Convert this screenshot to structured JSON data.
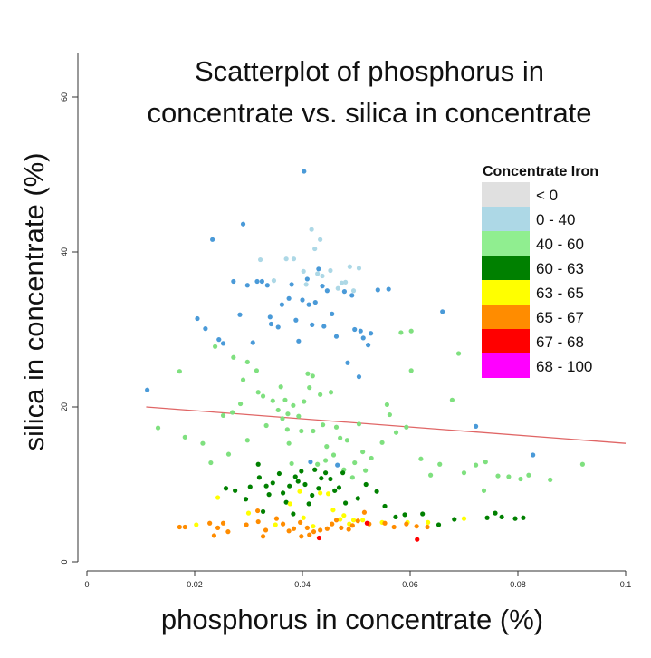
{
  "chart_data": {
    "type": "scatter",
    "title_lines": [
      "Scatterplot of phosphorus in",
      "concentrate vs. silica in concentrate"
    ],
    "xlabel": "phosphorus in concentrate (%)",
    "ylabel": "silica in concentrate (%)",
    "xlim": [
      0,
      0.1
    ],
    "ylim": [
      0,
      60
    ],
    "x_ticks": [
      "0",
      "0.02",
      "0.04",
      "0.06",
      "0.08",
      "0.1"
    ],
    "y_ticks": [
      "0",
      "20",
      "40",
      "60"
    ],
    "grid": false,
    "legend": {
      "title": "Concentrate Iron",
      "placement": "right",
      "items": [
        {
          "label": "< 0",
          "color": "#e0e0e0"
        },
        {
          "label": "0 - 40",
          "color": "#add8e6"
        },
        {
          "label": "40 - 60",
          "color": "#90ee90"
        },
        {
          "label": "60 - 63",
          "color": "#008000"
        },
        {
          "label": "63 - 65",
          "color": "#ffff00"
        },
        {
          "label": "65 - 67",
          "color": "#ff8c00"
        },
        {
          "label": "67 - 68",
          "color": "#ff0000"
        },
        {
          "label": "68 - 100",
          "color": "#ff00ff"
        }
      ]
    },
    "point_colors": {
      "blue": "#4a9ad8",
      "lightblue": "#add8e6",
      "lightgreen": "#7fe07f",
      "green": "#008000",
      "yellow": "#ffff00",
      "orange": "#ff8c00",
      "red": "#ff0000"
    },
    "trend_line": {
      "x": [
        0.011,
        0.1
      ],
      "y": [
        20.0,
        15.3
      ],
      "color": "#e06666"
    },
    "series": [
      {
        "name": "0 - 40",
        "color_key": "blue",
        "points": [
          [
            0.0112,
            22.2
          ],
          [
            0.0205,
            31.4
          ],
          [
            0.022,
            30.1
          ],
          [
            0.0233,
            41.6
          ],
          [
            0.0245,
            28.7
          ],
          [
            0.0253,
            28.2
          ],
          [
            0.0272,
            36.2
          ],
          [
            0.0284,
            31.9
          ],
          [
            0.029,
            43.6
          ],
          [
            0.0298,
            35.7
          ],
          [
            0.0308,
            28.3
          ],
          [
            0.0316,
            36.2
          ],
          [
            0.0325,
            36.2
          ],
          [
            0.0335,
            35.7
          ],
          [
            0.034,
            31.6
          ],
          [
            0.0355,
            30.3
          ],
          [
            0.0362,
            33.2
          ],
          [
            0.0375,
            34.0
          ],
          [
            0.038,
            35.8
          ],
          [
            0.0388,
            31.2
          ],
          [
            0.0393,
            28.5
          ],
          [
            0.04,
            33.8
          ],
          [
            0.0403,
            50.4
          ],
          [
            0.0409,
            36.5
          ],
          [
            0.0412,
            33.2
          ],
          [
            0.0418,
            30.6
          ],
          [
            0.0424,
            33.5
          ],
          [
            0.043,
            37.8
          ],
          [
            0.0437,
            35.6
          ],
          [
            0.044,
            30.4
          ],
          [
            0.0446,
            35.0
          ],
          [
            0.0455,
            32.0
          ],
          [
            0.0463,
            29.1
          ],
          [
            0.0478,
            34.9
          ],
          [
            0.0484,
            25.7
          ],
          [
            0.0492,
            34.4
          ],
          [
            0.0497,
            30.0
          ],
          [
            0.0505,
            23.9
          ],
          [
            0.0508,
            29.8
          ],
          [
            0.0513,
            28.9
          ],
          [
            0.0522,
            28.0
          ],
          [
            0.0527,
            29.5
          ],
          [
            0.054,
            35.1
          ],
          [
            0.056,
            35.2
          ],
          [
            0.0415,
            12.9
          ],
          [
            0.0465,
            12.5
          ],
          [
            0.066,
            32.3
          ],
          [
            0.0722,
            17.5
          ],
          [
            0.0828,
            13.8
          ],
          [
            0.0342,
            30.7
          ]
        ]
      },
      {
        "name": "0 - 40 light",
        "color_key": "lightblue",
        "points": [
          [
            0.0322,
            39.0
          ],
          [
            0.0347,
            36.3
          ],
          [
            0.037,
            39.1
          ],
          [
            0.0384,
            39.1
          ],
          [
            0.0402,
            37.5
          ],
          [
            0.0407,
            35.8
          ],
          [
            0.0417,
            42.9
          ],
          [
            0.0423,
            40.4
          ],
          [
            0.0428,
            37.2
          ],
          [
            0.0437,
            36.9
          ],
          [
            0.0433,
            41.6
          ],
          [
            0.0452,
            37.6
          ],
          [
            0.0466,
            35.3
          ],
          [
            0.0473,
            36.0
          ],
          [
            0.048,
            36.1
          ],
          [
            0.0488,
            38.1
          ],
          [
            0.0505,
            37.9
          ],
          [
            0.0495,
            35.0
          ]
        ]
      },
      {
        "name": "40 - 60",
        "color_key": "lightgreen",
        "points": [
          [
            0.0132,
            17.3
          ],
          [
            0.0172,
            24.6
          ],
          [
            0.0182,
            16.1
          ],
          [
            0.0215,
            15.3
          ],
          [
            0.023,
            12.8
          ],
          [
            0.0238,
            27.8
          ],
          [
            0.0253,
            18.9
          ],
          [
            0.0263,
            13.9
          ],
          [
            0.027,
            19.3
          ],
          [
            0.0285,
            20.4
          ],
          [
            0.029,
            23.5
          ],
          [
            0.0298,
            15.7
          ],
          [
            0.0315,
            24.7
          ],
          [
            0.0318,
            21.9
          ],
          [
            0.0327,
            21.4
          ],
          [
            0.0333,
            17.6
          ],
          [
            0.0345,
            20.8
          ],
          [
            0.036,
            22.6
          ],
          [
            0.0363,
            18.5
          ],
          [
            0.0368,
            20.9
          ],
          [
            0.0373,
            19.1
          ],
          [
            0.0375,
            15.3
          ],
          [
            0.038,
            12.7
          ],
          [
            0.0383,
            20.2
          ],
          [
            0.0393,
            18.8
          ],
          [
            0.0398,
            16.9
          ],
          [
            0.0403,
            20.7
          ],
          [
            0.041,
            24.3
          ],
          [
            0.0413,
            22.5
          ],
          [
            0.0419,
            24.0
          ],
          [
            0.042,
            16.9
          ],
          [
            0.0428,
            12.6
          ],
          [
            0.0433,
            21.6
          ],
          [
            0.0438,
            17.7
          ],
          [
            0.0445,
            14.9
          ],
          [
            0.0453,
            21.9
          ],
          [
            0.0458,
            13.8
          ],
          [
            0.0463,
            17.4
          ],
          [
            0.047,
            16.0
          ],
          [
            0.0477,
            11.9
          ],
          [
            0.0483,
            15.7
          ],
          [
            0.0493,
            10.9
          ],
          [
            0.0497,
            12.8
          ],
          [
            0.0505,
            17.8
          ],
          [
            0.0512,
            14.2
          ],
          [
            0.0517,
            11.8
          ],
          [
            0.0528,
            13.4
          ],
          [
            0.0548,
            15.4
          ],
          [
            0.0557,
            20.3
          ],
          [
            0.0562,
            19.0
          ],
          [
            0.0574,
            16.7
          ],
          [
            0.0583,
            29.6
          ],
          [
            0.0593,
            17.4
          ],
          [
            0.0602,
            24.7
          ],
          [
            0.062,
            13.3
          ],
          [
            0.0638,
            11.2
          ],
          [
            0.0655,
            12.6
          ],
          [
            0.0678,
            20.9
          ],
          [
            0.069,
            26.9
          ],
          [
            0.07,
            11.5
          ],
          [
            0.0722,
            12.5
          ],
          [
            0.0737,
            9.2
          ],
          [
            0.074,
            12.9
          ],
          [
            0.0763,
            11.1
          ],
          [
            0.0783,
            11.0
          ],
          [
            0.0805,
            10.7
          ],
          [
            0.082,
            11.2
          ],
          [
            0.086,
            10.6
          ],
          [
            0.092,
            12.6
          ],
          [
            0.0602,
            29.8
          ],
          [
            0.0272,
            26.4
          ],
          [
            0.0298,
            25.8
          ],
          [
            0.0355,
            19.6
          ],
          [
            0.0372,
            17.1
          ],
          [
            0.0443,
            13.1
          ]
        ]
      },
      {
        "name": "60 - 63",
        "color_key": "green",
        "points": [
          [
            0.0258,
            9.5
          ],
          [
            0.0275,
            9.2
          ],
          [
            0.0295,
            8.1
          ],
          [
            0.0318,
            12.6
          ],
          [
            0.032,
            10.9
          ],
          [
            0.0333,
            9.8
          ],
          [
            0.0338,
            8.7
          ],
          [
            0.0345,
            10.2
          ],
          [
            0.0357,
            11.4
          ],
          [
            0.0364,
            8.9
          ],
          [
            0.037,
            7.7
          ],
          [
            0.0376,
            9.8
          ],
          [
            0.0383,
            6.2
          ],
          [
            0.0387,
            11.0
          ],
          [
            0.0392,
            10.4
          ],
          [
            0.0398,
            11.7
          ],
          [
            0.0405,
            10.0
          ],
          [
            0.0412,
            7.5
          ],
          [
            0.0418,
            8.6
          ],
          [
            0.0423,
            11.9
          ],
          [
            0.043,
            9.5
          ],
          [
            0.0435,
            10.8
          ],
          [
            0.0443,
            11.5
          ],
          [
            0.0452,
            10.7
          ],
          [
            0.046,
            9.2
          ],
          [
            0.0468,
            9.6
          ],
          [
            0.0475,
            11.5
          ],
          [
            0.048,
            7.6
          ],
          [
            0.0503,
            8.2
          ],
          [
            0.0518,
            10.0
          ],
          [
            0.0538,
            9.1
          ],
          [
            0.0553,
            7.2
          ],
          [
            0.0573,
            5.8
          ],
          [
            0.059,
            6.1
          ],
          [
            0.0623,
            6.2
          ],
          [
            0.0653,
            4.8
          ],
          [
            0.0682,
            5.5
          ],
          [
            0.0743,
            5.7
          ],
          [
            0.0758,
            6.3
          ],
          [
            0.077,
            5.8
          ],
          [
            0.0795,
            5.6
          ],
          [
            0.081,
            5.7
          ],
          [
            0.0303,
            9.7
          ],
          [
            0.0327,
            6.5
          ]
        ]
      },
      {
        "name": "63 - 65",
        "color_key": "yellow",
        "points": [
          [
            0.0203,
            4.8
          ],
          [
            0.0243,
            8.3
          ],
          [
            0.03,
            6.3
          ],
          [
            0.035,
            4.8
          ],
          [
            0.0377,
            7.5
          ],
          [
            0.0395,
            9.1
          ],
          [
            0.0402,
            5.7
          ],
          [
            0.042,
            4.6
          ],
          [
            0.0433,
            8.9
          ],
          [
            0.0448,
            8.8
          ],
          [
            0.0457,
            6.7
          ],
          [
            0.047,
            5.5
          ],
          [
            0.0477,
            6.0
          ],
          [
            0.0487,
            4.9
          ],
          [
            0.0495,
            5.4
          ],
          [
            0.0512,
            5.4
          ],
          [
            0.0548,
            5.1
          ],
          [
            0.0595,
            5.1
          ],
          [
            0.0633,
            5.1
          ],
          [
            0.07,
            5.6
          ]
        ]
      },
      {
        "name": "65 - 67",
        "color_key": "orange",
        "points": [
          [
            0.0172,
            4.5
          ],
          [
            0.0182,
            4.5
          ],
          [
            0.0228,
            5.0
          ],
          [
            0.0236,
            3.4
          ],
          [
            0.0243,
            4.4
          ],
          [
            0.0253,
            5.0
          ],
          [
            0.0262,
            3.9
          ],
          [
            0.0296,
            4.8
          ],
          [
            0.0318,
            5.2
          ],
          [
            0.0327,
            3.3
          ],
          [
            0.0332,
            4.1
          ],
          [
            0.0352,
            5.6
          ],
          [
            0.0364,
            4.9
          ],
          [
            0.0375,
            4.0
          ],
          [
            0.0384,
            4.3
          ],
          [
            0.0396,
            5.1
          ],
          [
            0.0409,
            4.4
          ],
          [
            0.0413,
            3.5
          ],
          [
            0.0421,
            3.9
          ],
          [
            0.0433,
            4.1
          ],
          [
            0.0446,
            4.3
          ],
          [
            0.0455,
            4.9
          ],
          [
            0.0463,
            5.4
          ],
          [
            0.0472,
            4.4
          ],
          [
            0.0486,
            4.2
          ],
          [
            0.0493,
            4.7
          ],
          [
            0.0503,
            5.3
          ],
          [
            0.0515,
            6.4
          ],
          [
            0.0524,
            4.9
          ],
          [
            0.0553,
            5.0
          ],
          [
            0.057,
            4.5
          ],
          [
            0.0593,
            4.9
          ],
          [
            0.0612,
            4.6
          ],
          [
            0.0632,
            4.5
          ],
          [
            0.0317,
            6.6
          ],
          [
            0.0398,
            3.3
          ]
        ]
      },
      {
        "name": "67 - 68",
        "color_key": "red",
        "points": [
          [
            0.0431,
            3.1
          ],
          [
            0.052,
            5.0
          ],
          [
            0.0613,
            2.9
          ]
        ]
      }
    ]
  }
}
